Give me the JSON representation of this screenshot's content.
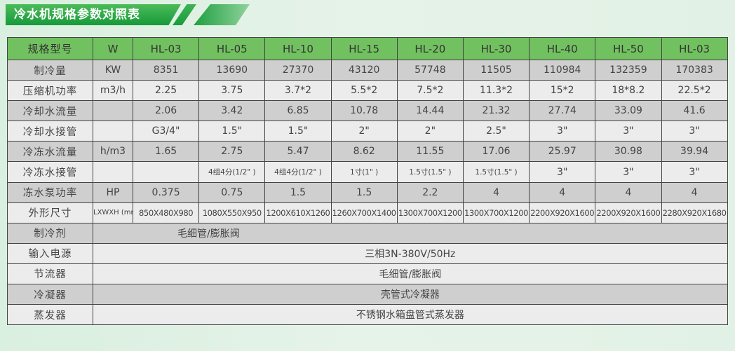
{
  "title": "冷水机规格参数对照表",
  "colors": {
    "header": "#72c160",
    "banner": "#169a3a",
    "row_dark": "#cfcfcf",
    "row_light": "#ececec"
  },
  "header": {
    "label": "规格型号",
    "unit": "W",
    "models": [
      "HL-03",
      "HL-05",
      "HL-10",
      "HL-15",
      "HL-20",
      "HL-30",
      "HL-40",
      "HL-50",
      "HL-03"
    ]
  },
  "rows": [
    {
      "label": "制冷量",
      "unit": "KW",
      "values": [
        "8351",
        "13690",
        "27370",
        "43120",
        "57748",
        "11505",
        "110984",
        "132359",
        "170383"
      ]
    },
    {
      "label": "压缩机功率",
      "unit": "m3/h",
      "values": [
        "2.25",
        "3.75",
        "3.7*2",
        "5.5*2",
        "7.5*2",
        "11.3*2",
        "15*2",
        "18*8.2",
        "22.5*2"
      ]
    },
    {
      "label": "冷却水流量",
      "unit": "",
      "values": [
        "2.06",
        "3.42",
        "6.85",
        "10.78",
        "14.44",
        "21.32",
        "27.74",
        "33.09",
        "41.6"
      ]
    },
    {
      "label": "冷却水接管",
      "unit": "",
      "values": [
        "G3/4\"",
        "1.5\"",
        "1.5\"",
        "2\"",
        "2\"",
        "2.5\"",
        "3\"",
        "3\"",
        "3\""
      ]
    },
    {
      "label": "冷冻水流量",
      "unit": "h/m3",
      "values": [
        "1.65",
        "2.75",
        "5.47",
        "8.62",
        "11.55",
        "17.06",
        "25.97",
        "30.98",
        "39.94"
      ]
    },
    {
      "label": "冷冻水接管",
      "unit": "",
      "values": [
        "",
        "4组4分(1/2\" )",
        "4组4分(1/2\" )",
        "1寸(1\" )",
        "1.5寸(1.5\" )",
        "1.5寸(1.5\" )",
        "3\"",
        "3\"",
        "3\""
      ]
    },
    {
      "label": "冻水泵功率",
      "unit": "HP",
      "values": [
        "0.375",
        "0.75",
        "1.5",
        "1.5",
        "2.2",
        "4",
        "4",
        "4",
        "4"
      ]
    },
    {
      "label": "外形尺寸",
      "unit": "LXWXH (mm)",
      "values": [
        "850X480X980",
        "1080X550X950",
        "1200X610X1260",
        "1260X700X1400",
        "1300X700X1200",
        "1300X700X1200",
        "2200X920X1600",
        "2200X920X1600",
        "2280X920X1680"
      ]
    }
  ],
  "spans": [
    {
      "label": "制冷剂",
      "value": "毛细管/膨胀阀"
    },
    {
      "label": "输入电源",
      "value": "三相3N-380V/50Hz"
    },
    {
      "label": "节流器",
      "value": "毛细管/膨胀阀"
    },
    {
      "label": "冷凝器",
      "value": "壳管式冷凝器"
    },
    {
      "label": "蒸发器",
      "value": "不锈钢水箱盘管式蒸发器"
    }
  ]
}
